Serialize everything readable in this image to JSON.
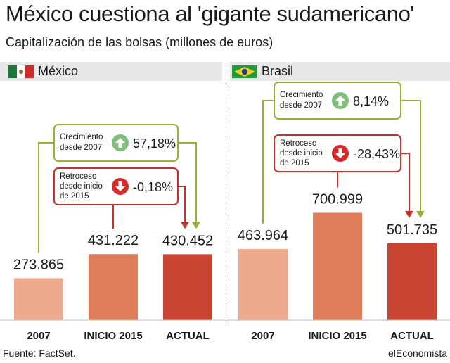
{
  "header": {
    "title": "México cuestiona al 'gigante sudamericano'",
    "subtitle": "Capitalización de las bolsas (millones de euros)"
  },
  "footer": {
    "source": "Fuente: FactSet.",
    "brand": "elEconomista"
  },
  "colors": {
    "c2007": "#eeaa8c",
    "inicio": "#e07d5b",
    "actual": "#c94531",
    "green": "#9aae3a",
    "red": "#c8302a",
    "green_icon": "#7fbf7a",
    "red_icon": "#d42a2a"
  },
  "chart_data": [
    {
      "type": "bar",
      "panel": "México",
      "categories": [
        "2007",
        "INICIO 2015",
        "ACTUAL"
      ],
      "values": [
        273865,
        431222,
        430452
      ],
      "value_labels": [
        "273.865",
        "431.222",
        "430.452"
      ],
      "ylim": [
        0,
        720000
      ],
      "growth": {
        "label_line1": "Crecimiento",
        "label_line2": "desde 2007",
        "value": "57,18%",
        "direction": "up",
        "icon": "arrow-up-icon"
      },
      "decline": {
        "label_line1": "Retroceso",
        "label_line2": "desde inicio",
        "label_line3": "de 2015",
        "value": "-0,18%",
        "direction": "down",
        "icon": "arrow-down-icon"
      }
    },
    {
      "type": "bar",
      "panel": "Brasil",
      "categories": [
        "2007",
        "INICIO 2015",
        "ACTUAL"
      ],
      "values": [
        463964,
        700999,
        501735
      ],
      "value_labels": [
        "463.964",
        "700.999",
        "501.735"
      ],
      "ylim": [
        0,
        720000
      ],
      "growth": {
        "label_line1": "Crecimiento",
        "label_line2": "desde 2007",
        "value": "8,14%",
        "direction": "up",
        "icon": "arrow-up-icon"
      },
      "decline": {
        "label_line1": "Retroceso",
        "label_line2": "desde inicio",
        "label_line3": "de 2015",
        "value": "-28,43%",
        "direction": "down",
        "icon": "arrow-down-icon"
      }
    }
  ]
}
